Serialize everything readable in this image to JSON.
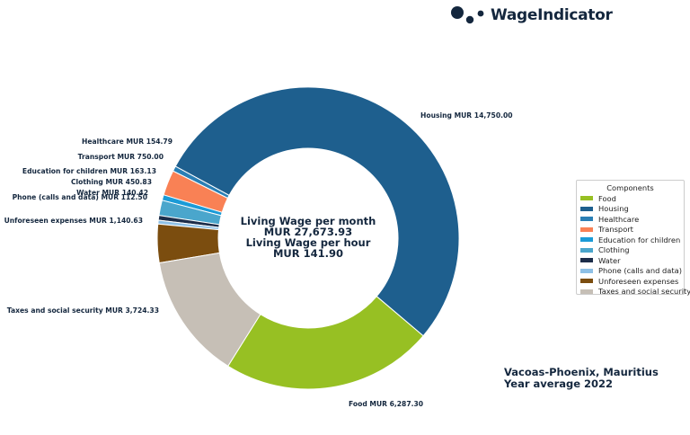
{
  "brand": {
    "name": "WageIndicator"
  },
  "location": {
    "line1": "Vacoas-Phoenix, Mauritius",
    "line2": "Year average 2022"
  },
  "center_text": {
    "line1": "Living Wage per month",
    "line2": "MUR 27,673.93",
    "line3": "Living Wage per hour",
    "line4": "MUR 141.90"
  },
  "legend": {
    "title": "Components"
  },
  "chart_data": {
    "type": "pie",
    "donut": true,
    "title": "",
    "categories": [
      "Food",
      "Housing",
      "Healthcare",
      "Transport",
      "Education for children",
      "Clothing",
      "Water",
      "Phone (calls and data)",
      "Unforeseen expenses",
      "Taxes and social security"
    ],
    "values": [
      6287.3,
      14750.0,
      154.79,
      750.0,
      163.13,
      450.83,
      140.42,
      112.5,
      1140.63,
      3724.33
    ],
    "labels": [
      "Food MUR 6,287.30",
      "Housing MUR 14,750.00",
      "Healthcare MUR 154.79",
      "Transport MUR 750.00",
      "Education for children MUR 163.13",
      "Clothing MUR 450.83",
      "Water MUR 140.42",
      "Phone (calls and data) MUR 112.50",
      "Unforeseen expenses MUR 1,140.63",
      "Taxes and social security MUR 3,724.33"
    ],
    "colors": [
      "#97c023",
      "#1e5f8e",
      "#2a7fb5",
      "#f98155",
      "#1b9bd7",
      "#4aa6cc",
      "#1c2d4a",
      "#8ec0e6",
      "#7b4d0f",
      "#c6bfb6"
    ],
    "legend_position": "right"
  }
}
